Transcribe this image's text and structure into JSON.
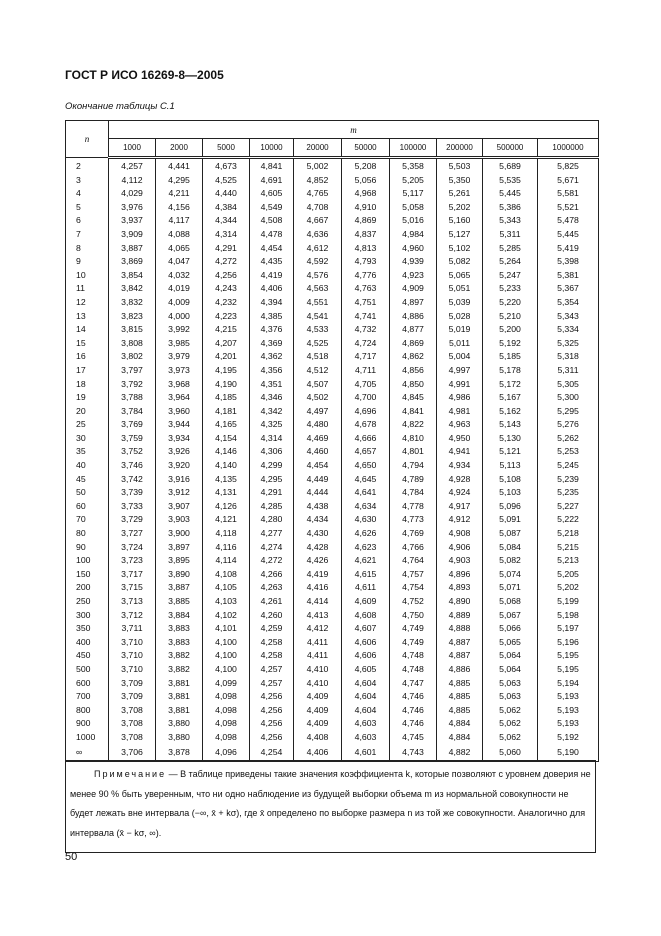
{
  "header": {
    "title": "ГОСТ Р ИСО 16269-8—2005"
  },
  "caption": "Окончание   таблицы С.1",
  "table": {
    "row_header": "n",
    "col_group_header": "m",
    "columns": [
      "1000",
      "2000",
      "5000",
      "10000",
      "20000",
      "50000",
      "100000",
      "200000",
      "500000",
      "1000000"
    ],
    "rows": [
      [
        "2",
        "4,257",
        "4,441",
        "4,673",
        "4,841",
        "5,002",
        "5,208",
        "5,358",
        "5,503",
        "5,689",
        "5,825"
      ],
      [
        "3",
        "4,112",
        "4,295",
        "4,525",
        "4,691",
        "4,852",
        "5,056",
        "5,205",
        "5,350",
        "5,535",
        "5,671"
      ],
      [
        "4",
        "4,029",
        "4,211",
        "4,440",
        "4,605",
        "4,765",
        "4,968",
        "5,117",
        "5,261",
        "5,445",
        "5,581"
      ],
      [
        "5",
        "3,976",
        "4,156",
        "4,384",
        "4,549",
        "4,708",
        "4,910",
        "5,058",
        "5,202",
        "5,386",
        "5,521"
      ],
      [
        "6",
        "3,937",
        "4,117",
        "4,344",
        "4,508",
        "4,667",
        "4,869",
        "5,016",
        "5,160",
        "5,343",
        "5,478"
      ],
      [
        "7",
        "3,909",
        "4,088",
        "4,314",
        "4,478",
        "4,636",
        "4,837",
        "4,984",
        "5,127",
        "5,311",
        "5,445"
      ],
      [
        "8",
        "3,887",
        "4,065",
        "4,291",
        "4,454",
        "4,612",
        "4,813",
        "4,960",
        "5,102",
        "5,285",
        "5,419"
      ],
      [
        "9",
        "3,869",
        "4,047",
        "4,272",
        "4,435",
        "4,592",
        "4,793",
        "4,939",
        "5,082",
        "5,264",
        "5,398"
      ],
      [
        "10",
        "3,854",
        "4,032",
        "4,256",
        "4,419",
        "4,576",
        "4,776",
        "4,923",
        "5,065",
        "5,247",
        "5,381"
      ],
      [
        "11",
        "3,842",
        "4,019",
        "4,243",
        "4,406",
        "4,563",
        "4,763",
        "4,909",
        "5,051",
        "5,233",
        "5,367"
      ],
      [
        "12",
        "3,832",
        "4,009",
        "4,232",
        "4,394",
        "4,551",
        "4,751",
        "4,897",
        "5,039",
        "5,220",
        "5,354"
      ],
      [
        "13",
        "3,823",
        "4,000",
        "4,223",
        "4,385",
        "4,541",
        "4,741",
        "4,886",
        "5,028",
        "5,210",
        "5,343"
      ],
      [
        "14",
        "3,815",
        "3,992",
        "4,215",
        "4,376",
        "4,533",
        "4,732",
        "4,877",
        "5,019",
        "5,200",
        "5,334"
      ],
      [
        "15",
        "3,808",
        "3,985",
        "4,207",
        "4,369",
        "4,525",
        "4,724",
        "4,869",
        "5,011",
        "5,192",
        "5,325"
      ],
      [
        "16",
        "3,802",
        "3,979",
        "4,201",
        "4,362",
        "4,518",
        "4,717",
        "4,862",
        "5,004",
        "5,185",
        "5,318"
      ],
      [
        "17",
        "3,797",
        "3,973",
        "4,195",
        "4,356",
        "4,512",
        "4,711",
        "4,856",
        "4,997",
        "5,178",
        "5,311"
      ],
      [
        "18",
        "3,792",
        "3,968",
        "4,190",
        "4,351",
        "4,507",
        "4,705",
        "4,850",
        "4,991",
        "5,172",
        "5,305"
      ],
      [
        "19",
        "3,788",
        "3,964",
        "4,185",
        "4,346",
        "4,502",
        "4,700",
        "4,845",
        "4,986",
        "5,167",
        "5,300"
      ],
      [
        "20",
        "3,784",
        "3,960",
        "4,181",
        "4,342",
        "4,497",
        "4,696",
        "4,841",
        "4,981",
        "5,162",
        "5,295"
      ],
      [
        "25",
        "3,769",
        "3,944",
        "4,165",
        "4,325",
        "4,480",
        "4,678",
        "4,822",
        "4,963",
        "5,143",
        "5,276"
      ],
      [
        "30",
        "3,759",
        "3,934",
        "4,154",
        "4,314",
        "4,469",
        "4,666",
        "4,810",
        "4,950",
        "5,130",
        "5,262"
      ],
      [
        "35",
        "3,752",
        "3,926",
        "4,146",
        "4,306",
        "4,460",
        "4,657",
        "4,801",
        "4,941",
        "5,121",
        "5,253"
      ],
      [
        "40",
        "3,746",
        "3,920",
        "4,140",
        "4,299",
        "4,454",
        "4,650",
        "4,794",
        "4,934",
        "5,113",
        "5,245"
      ],
      [
        "45",
        "3,742",
        "3,916",
        "4,135",
        "4,295",
        "4,449",
        "4,645",
        "4,789",
        "4,928",
        "5,108",
        "5,239"
      ],
      [
        "50",
        "3,739",
        "3,912",
        "4,131",
        "4,291",
        "4,444",
        "4,641",
        "4,784",
        "4,924",
        "5,103",
        "5,235"
      ],
      [
        "60",
        "3,733",
        "3,907",
        "4,126",
        "4,285",
        "4,438",
        "4,634",
        "4,778",
        "4,917",
        "5,096",
        "5,227"
      ],
      [
        "70",
        "3,729",
        "3,903",
        "4,121",
        "4,280",
        "4,434",
        "4,630",
        "4,773",
        "4,912",
        "5,091",
        "5,222"
      ],
      [
        "80",
        "3,727",
        "3,900",
        "4,118",
        "4,277",
        "4,430",
        "4,626",
        "4,769",
        "4,908",
        "5,087",
        "5,218"
      ],
      [
        "90",
        "3,724",
        "3,897",
        "4,116",
        "4,274",
        "4,428",
        "4,623",
        "4,766",
        "4,906",
        "5,084",
        "5,215"
      ],
      [
        "100",
        "3,723",
        "3,895",
        "4,114",
        "4,272",
        "4,426",
        "4,621",
        "4,764",
        "4,903",
        "5,082",
        "5,213"
      ],
      [
        "150",
        "3,717",
        "3,890",
        "4,108",
        "4,266",
        "4,419",
        "4,615",
        "4,757",
        "4,896",
        "5,074",
        "5,205"
      ],
      [
        "200",
        "3,715",
        "3,887",
        "4,105",
        "4,263",
        "4,416",
        "4,611",
        "4,754",
        "4,893",
        "5,071",
        "5,202"
      ],
      [
        "250",
        "3,713",
        "3,885",
        "4,103",
        "4,261",
        "4,414",
        "4,609",
        "4,752",
        "4,890",
        "5,068",
        "5,199"
      ],
      [
        "300",
        "3,712",
        "3,884",
        "4,102",
        "4,260",
        "4,413",
        "4,608",
        "4,750",
        "4,889",
        "5,067",
        "5,198"
      ],
      [
        "350",
        "3,711",
        "3,883",
        "4,101",
        "4,259",
        "4,412",
        "4,607",
        "4,749",
        "4,888",
        "5,066",
        "5,197"
      ],
      [
        "400",
        "3,710",
        "3,883",
        "4,100",
        "4,258",
        "4,411",
        "4,606",
        "4,749",
        "4,887",
        "5,065",
        "5,196"
      ],
      [
        "450",
        "3,710",
        "3,882",
        "4,100",
        "4,258",
        "4,411",
        "4,606",
        "4,748",
        "4,887",
        "5,064",
        "5,195"
      ],
      [
        "500",
        "3,710",
        "3,882",
        "4,100",
        "4,257",
        "4,410",
        "4,605",
        "4,748",
        "4,886",
        "5,064",
        "5,195"
      ],
      [
        "600",
        "3,709",
        "3,881",
        "4,099",
        "4,257",
        "4,410",
        "4,604",
        "4,747",
        "4,885",
        "5,063",
        "5,194"
      ],
      [
        "700",
        "3,709",
        "3,881",
        "4,098",
        "4,256",
        "4,409",
        "4,604",
        "4,746",
        "4,885",
        "5,063",
        "5,193"
      ],
      [
        "800",
        "3,708",
        "3,881",
        "4,098",
        "4,256",
        "4,409",
        "4,604",
        "4,746",
        "4,885",
        "5,062",
        "5,193"
      ],
      [
        "900",
        "3,708",
        "3,880",
        "4,098",
        "4,256",
        "4,409",
        "4,603",
        "4,746",
        "4,884",
        "5,062",
        "5,193"
      ],
      [
        "1000",
        "3,708",
        "3,880",
        "4,098",
        "4,256",
        "4,408",
        "4,603",
        "4,745",
        "4,884",
        "5,062",
        "5,192"
      ],
      [
        "∞",
        "3,706",
        "3,878",
        "4,096",
        "4,254",
        "4,406",
        "4,601",
        "4,743",
        "4,882",
        "5,060",
        "5,190"
      ]
    ]
  },
  "note": {
    "label": "Примечание",
    "text": "— В таблице приведены такие значения коэффициента k, которые позволяют с уровнем доверия не менее 90 % быть уверенным, что ни одно наблюдение из будущей выборки объема m из нормальной совокупности не будет лежать вне интервала (−∞, x̄ + kσ), где x̄ определено по выборке размера n из той же совокупности. Аналогично для интервала (x̄ − kσ, ∞)."
  },
  "page_number": "50"
}
